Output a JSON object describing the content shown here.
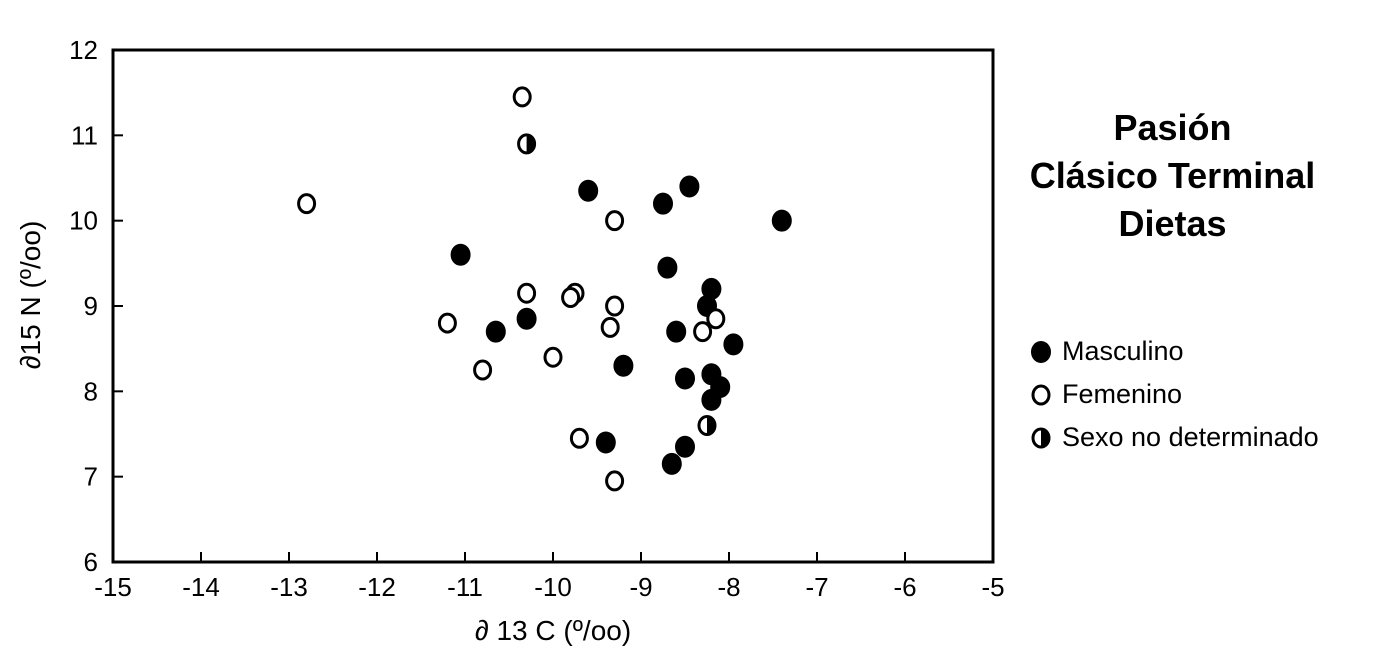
{
  "chart_data": {
    "type": "scatter",
    "title_lines": [
      "Pasión",
      "Clásico Terminal",
      "Dietas"
    ],
    "xlabel": "∂ 13 C (º/oo)",
    "ylabel": "∂15 N (º/oo)",
    "xlim": [
      -15,
      -5
    ],
    "ylim": [
      6,
      12
    ],
    "xticks": [
      -15,
      -14,
      -13,
      -12,
      -11,
      -10,
      -9,
      -8,
      -7,
      -6,
      -5
    ],
    "yticks": [
      6,
      7,
      8,
      9,
      10,
      11,
      12
    ],
    "grid": false,
    "legend_position": "right",
    "series": [
      {
        "name": "Masculino",
        "marker": "filled",
        "points": [
          [
            -9.6,
            10.35
          ],
          [
            -8.75,
            10.2
          ],
          [
            -8.45,
            10.4
          ],
          [
            -7.4,
            10.0
          ],
          [
            -11.05,
            9.6
          ],
          [
            -8.7,
            9.45
          ],
          [
            -8.2,
            9.2
          ],
          [
            -8.25,
            9.0
          ],
          [
            -10.3,
            8.85
          ],
          [
            -10.65,
            8.7
          ],
          [
            -8.6,
            8.7
          ],
          [
            -7.95,
            8.55
          ],
          [
            -9.2,
            8.3
          ],
          [
            -8.5,
            8.15
          ],
          [
            -8.2,
            8.2
          ],
          [
            -8.1,
            8.05
          ],
          [
            -8.2,
            7.9
          ],
          [
            -9.4,
            7.4
          ],
          [
            -8.5,
            7.35
          ],
          [
            -8.65,
            7.15
          ]
        ]
      },
      {
        "name": "Femenino",
        "marker": "open",
        "points": [
          [
            -10.35,
            11.45
          ],
          [
            -12.8,
            10.2
          ],
          [
            -9.3,
            10.0
          ],
          [
            -10.3,
            9.15
          ],
          [
            -9.75,
            9.15
          ],
          [
            -9.8,
            9.1
          ],
          [
            -9.3,
            9.0
          ],
          [
            -11.2,
            8.8
          ],
          [
            -9.35,
            8.75
          ],
          [
            -8.3,
            8.7
          ],
          [
            -8.15,
            8.85
          ],
          [
            -10.0,
            8.4
          ],
          [
            -10.8,
            8.25
          ],
          [
            -9.7,
            7.45
          ],
          [
            -9.3,
            6.95
          ]
        ]
      },
      {
        "name": "Sexo no determinado",
        "marker": "half",
        "points": [
          [
            -10.3,
            10.9
          ],
          [
            -8.25,
            7.6
          ]
        ]
      }
    ]
  }
}
